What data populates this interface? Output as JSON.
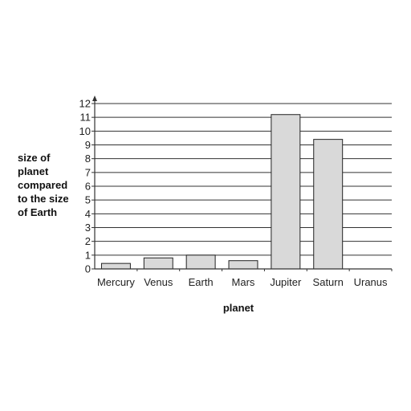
{
  "chart_data": {
    "type": "bar",
    "title": "",
    "categories": [
      "Mercury",
      "Venus",
      "Earth",
      "Mars",
      "Jupiter",
      "Saturn",
      "Uranus"
    ],
    "values": [
      0.4,
      0.8,
      1.0,
      0.6,
      11.2,
      9.4,
      null
    ],
    "ylabel_lines": [
      "size of",
      "planet",
      "compared",
      "to the size",
      "of Earth"
    ],
    "xlabel": "planet",
    "ylim": [
      0,
      12
    ],
    "yticks": [
      0,
      1,
      2,
      3,
      4,
      5,
      6,
      7,
      8,
      9,
      10,
      11,
      12
    ],
    "grid": true,
    "bar_color": "#d9d9d9",
    "bar_edge_color": "#222222"
  }
}
